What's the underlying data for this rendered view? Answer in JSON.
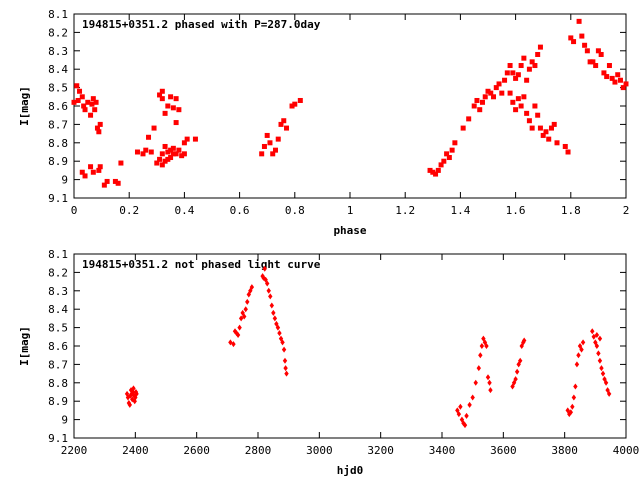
{
  "chart_data": [
    {
      "type": "scatter",
      "title": "194815+0351.2 phased with P=287.0day",
      "xlabel": "phase",
      "ylabel": "I[mag]",
      "xlim": [
        0,
        2
      ],
      "ylim": [
        9.1,
        8.1
      ],
      "y_inverted": true,
      "xticks": [
        0,
        0.2,
        0.4,
        0.6,
        0.8,
        1,
        1.2,
        1.4,
        1.6,
        1.8,
        2
      ],
      "xtick_labels": [
        "0",
        "0.2",
        "0.4",
        "0.6",
        "0.8",
        "1",
        "1.2",
        "1.4",
        "1.6",
        "1.8",
        "2"
      ],
      "yticks": [
        8.1,
        8.2,
        8.3,
        8.4,
        8.5,
        8.6,
        8.7,
        8.8,
        8.9,
        9,
        9.1
      ],
      "ytick_labels": [
        "8.1",
        "8.2",
        "8.3",
        "8.4",
        "8.5",
        "8.6",
        "8.7",
        "8.8",
        "8.9",
        "9",
        "9.1"
      ],
      "grid": false,
      "marker_color": "#ff0000",
      "marker": "square",
      "series": [
        {
          "points": [
            [
              0.0,
              8.58
            ],
            [
              0.01,
              8.49
            ],
            [
              0.015,
              8.57
            ],
            [
              0.02,
              8.52
            ],
            [
              0.03,
              8.55
            ],
            [
              0.035,
              8.6
            ],
            [
              0.04,
              8.62
            ],
            [
              0.05,
              8.58
            ],
            [
              0.06,
              8.65
            ],
            [
              0.065,
              8.59
            ],
            [
              0.07,
              8.56
            ],
            [
              0.075,
              8.62
            ],
            [
              0.08,
              8.58
            ],
            [
              0.085,
              8.72
            ],
            [
              0.09,
              8.74
            ],
            [
              0.095,
              8.7
            ],
            [
              0.03,
              8.96
            ],
            [
              0.04,
              8.98
            ],
            [
              0.06,
              8.93
            ],
            [
              0.07,
              8.96
            ],
            [
              0.09,
              8.95
            ],
            [
              0.095,
              8.93
            ],
            [
              0.11,
              9.03
            ],
            [
              0.12,
              9.01
            ],
            [
              0.15,
              9.01
            ],
            [
              0.16,
              9.02
            ],
            [
              0.17,
              8.91
            ],
            [
              0.23,
              8.85
            ],
            [
              0.25,
              8.86
            ],
            [
              0.26,
              8.84
            ],
            [
              0.27,
              8.77
            ],
            [
              0.28,
              8.85
            ],
            [
              0.29,
              8.72
            ],
            [
              0.3,
              8.91
            ],
            [
              0.31,
              8.89
            ],
            [
              0.32,
              8.92
            ],
            [
              0.32,
              8.86
            ],
            [
              0.33,
              8.9
            ],
            [
              0.33,
              8.82
            ],
            [
              0.34,
              8.89
            ],
            [
              0.34,
              8.85
            ],
            [
              0.35,
              8.88
            ],
            [
              0.35,
              8.84
            ],
            [
              0.36,
              8.86
            ],
            [
              0.36,
              8.83
            ],
            [
              0.37,
              8.86
            ],
            [
              0.38,
              8.84
            ],
            [
              0.39,
              8.87
            ],
            [
              0.4,
              8.86
            ],
            [
              0.4,
              8.8
            ],
            [
              0.41,
              8.78
            ],
            [
              0.44,
              8.78
            ],
            [
              0.31,
              8.54
            ],
            [
              0.32,
              8.52
            ],
            [
              0.32,
              8.56
            ],
            [
              0.33,
              8.64
            ],
            [
              0.34,
              8.6
            ],
            [
              0.35,
              8.55
            ],
            [
              0.36,
              8.61
            ],
            [
              0.37,
              8.69
            ],
            [
              0.38,
              8.62
            ],
            [
              0.37,
              8.56
            ],
            [
              0.68,
              8.86
            ],
            [
              0.69,
              8.82
            ],
            [
              0.7,
              8.76
            ],
            [
              0.71,
              8.8
            ],
            [
              0.72,
              8.86
            ],
            [
              0.73,
              8.84
            ],
            [
              0.74,
              8.78
            ],
            [
              0.75,
              8.7
            ],
            [
              0.76,
              8.68
            ],
            [
              0.77,
              8.72
            ],
            [
              0.79,
              8.6
            ],
            [
              0.8,
              8.59
            ],
            [
              0.82,
              8.57
            ],
            [
              1.29,
              8.95
            ],
            [
              1.3,
              8.96
            ],
            [
              1.31,
              8.97
            ],
            [
              1.32,
              8.95
            ],
            [
              1.33,
              8.92
            ],
            [
              1.34,
              8.9
            ],
            [
              1.35,
              8.86
            ],
            [
              1.36,
              8.88
            ],
            [
              1.37,
              8.84
            ],
            [
              1.38,
              8.8
            ],
            [
              1.41,
              8.72
            ],
            [
              1.43,
              8.67
            ],
            [
              1.45,
              8.6
            ],
            [
              1.46,
              8.57
            ],
            [
              1.47,
              8.62
            ],
            [
              1.48,
              8.58
            ],
            [
              1.49,
              8.55
            ],
            [
              1.5,
              8.52
            ],
            [
              1.51,
              8.53
            ],
            [
              1.52,
              8.55
            ],
            [
              1.53,
              8.5
            ],
            [
              1.54,
              8.48
            ],
            [
              1.55,
              8.53
            ],
            [
              1.56,
              8.46
            ],
            [
              1.57,
              8.42
            ],
            [
              1.58,
              8.38
            ],
            [
              1.59,
              8.42
            ],
            [
              1.6,
              8.45
            ],
            [
              1.61,
              8.43
            ],
            [
              1.62,
              8.38
            ],
            [
              1.63,
              8.34
            ],
            [
              1.64,
              8.46
            ],
            [
              1.65,
              8.4
            ],
            [
              1.66,
              8.36
            ],
            [
              1.67,
              8.38
            ],
            [
              1.68,
              8.32
            ],
            [
              1.69,
              8.28
            ],
            [
              1.58,
              8.53
            ],
            [
              1.59,
              8.58
            ],
            [
              1.6,
              8.62
            ],
            [
              1.61,
              8.56
            ],
            [
              1.62,
              8.6
            ],
            [
              1.63,
              8.55
            ],
            [
              1.64,
              8.64
            ],
            [
              1.65,
              8.68
            ],
            [
              1.66,
              8.72
            ],
            [
              1.67,
              8.6
            ],
            [
              1.68,
              8.65
            ],
            [
              1.69,
              8.72
            ],
            [
              1.7,
              8.76
            ],
            [
              1.71,
              8.74
            ],
            [
              1.72,
              8.78
            ],
            [
              1.73,
              8.72
            ],
            [
              1.74,
              8.7
            ],
            [
              1.75,
              8.8
            ],
            [
              1.78,
              8.82
            ],
            [
              1.79,
              8.85
            ],
            [
              1.8,
              8.23
            ],
            [
              1.81,
              8.25
            ],
            [
              1.83,
              8.14
            ],
            [
              1.84,
              8.22
            ],
            [
              1.85,
              8.27
            ],
            [
              1.86,
              8.3
            ],
            [
              1.87,
              8.36
            ],
            [
              1.88,
              8.36
            ],
            [
              1.89,
              8.38
            ],
            [
              1.9,
              8.3
            ],
            [
              1.91,
              8.32
            ],
            [
              1.92,
              8.42
            ],
            [
              1.93,
              8.44
            ],
            [
              1.94,
              8.38
            ],
            [
              1.95,
              8.45
            ],
            [
              1.96,
              8.47
            ],
            [
              1.97,
              8.43
            ],
            [
              1.98,
              8.46
            ],
            [
              1.99,
              8.5
            ],
            [
              2.0,
              8.48
            ]
          ]
        }
      ]
    },
    {
      "type": "scatter",
      "title": "194815+0351.2 not phased light curve",
      "xlabel": "hjd0",
      "ylabel": "I[mag]",
      "xlim": [
        2200,
        4000
      ],
      "ylim": [
        9.1,
        8.1
      ],
      "y_inverted": true,
      "xticks": [
        2200,
        2400,
        2600,
        2800,
        3000,
        3200,
        3400,
        3600,
        3800,
        4000
      ],
      "xtick_labels": [
        "2200",
        "2400",
        "2600",
        "2800",
        "3000",
        "3200",
        "3400",
        "3600",
        "3800",
        "4000"
      ],
      "yticks": [
        8.1,
        8.2,
        8.3,
        8.4,
        8.5,
        8.6,
        8.7,
        8.8,
        8.9,
        9,
        9.1
      ],
      "ytick_labels": [
        "8.1",
        "8.2",
        "8.3",
        "8.4",
        "8.5",
        "8.6",
        "8.7",
        "8.8",
        "8.9",
        "9",
        "9.1"
      ],
      "grid": false,
      "marker_color": "#ff0000",
      "marker": "diamond",
      "series": [
        {
          "points": [
            [
              2373,
              8.86
            ],
            [
              2376,
              8.88
            ],
            [
              2379,
              8.91
            ],
            [
              2382,
              8.92
            ],
            [
              2384,
              8.87
            ],
            [
              2386,
              8.84
            ],
            [
              2388,
              8.86
            ],
            [
              2390,
              8.89
            ],
            [
              2392,
              8.85
            ],
            [
              2394,
              8.83
            ],
            [
              2396,
              8.87
            ],
            [
              2398,
              8.9
            ],
            [
              2400,
              8.88
            ],
            [
              2402,
              8.85
            ],
            [
              2404,
              8.86
            ],
            [
              2710,
              8.58
            ],
            [
              2720,
              8.59
            ],
            [
              2725,
              8.52
            ],
            [
              2730,
              8.53
            ],
            [
              2735,
              8.54
            ],
            [
              2740,
              8.5
            ],
            [
              2745,
              8.45
            ],
            [
              2750,
              8.42
            ],
            [
              2755,
              8.44
            ],
            [
              2760,
              8.4
            ],
            [
              2765,
              8.36
            ],
            [
              2770,
              8.32
            ],
            [
              2775,
              8.3
            ],
            [
              2780,
              8.28
            ],
            [
              2815,
              8.22
            ],
            [
              2818,
              8.23
            ],
            [
              2822,
              8.18
            ],
            [
              2825,
              8.24
            ],
            [
              2830,
              8.26
            ],
            [
              2835,
              8.3
            ],
            [
              2840,
              8.33
            ],
            [
              2845,
              8.38
            ],
            [
              2850,
              8.42
            ],
            [
              2855,
              8.45
            ],
            [
              2860,
              8.48
            ],
            [
              2865,
              8.5
            ],
            [
              2870,
              8.53
            ],
            [
              2875,
              8.56
            ],
            [
              2880,
              8.58
            ],
            [
              2885,
              8.62
            ],
            [
              2888,
              8.68
            ],
            [
              2890,
              8.72
            ],
            [
              2893,
              8.75
            ],
            [
              3450,
              8.95
            ],
            [
              3455,
              8.97
            ],
            [
              3460,
              8.93
            ],
            [
              3465,
              9.0
            ],
            [
              3470,
              9.02
            ],
            [
              3475,
              9.03
            ],
            [
              3480,
              8.98
            ],
            [
              3490,
              8.92
            ],
            [
              3500,
              8.88
            ],
            [
              3510,
              8.8
            ],
            [
              3520,
              8.72
            ],
            [
              3525,
              8.65
            ],
            [
              3530,
              8.6
            ],
            [
              3535,
              8.56
            ],
            [
              3540,
              8.58
            ],
            [
              3545,
              8.6
            ],
            [
              3550,
              8.77
            ],
            [
              3555,
              8.8
            ],
            [
              3558,
              8.84
            ],
            [
              3630,
              8.82
            ],
            [
              3635,
              8.8
            ],
            [
              3640,
              8.78
            ],
            [
              3645,
              8.74
            ],
            [
              3650,
              8.7
            ],
            [
              3655,
              8.68
            ],
            [
              3660,
              8.6
            ],
            [
              3665,
              8.58
            ],
            [
              3668,
              8.57
            ],
            [
              3810,
              8.95
            ],
            [
              3815,
              8.97
            ],
            [
              3820,
              8.96
            ],
            [
              3825,
              8.93
            ],
            [
              3830,
              8.88
            ],
            [
              3835,
              8.82
            ],
            [
              3840,
              8.7
            ],
            [
              3845,
              8.65
            ],
            [
              3850,
              8.6
            ],
            [
              3855,
              8.62
            ],
            [
              3860,
              8.58
            ],
            [
              3890,
              8.52
            ],
            [
              3895,
              8.55
            ],
            [
              3900,
              8.58
            ],
            [
              3905,
              8.6
            ],
            [
              3910,
              8.64
            ],
            [
              3915,
              8.68
            ],
            [
              3920,
              8.72
            ],
            [
              3925,
              8.75
            ],
            [
              3930,
              8.78
            ],
            [
              3935,
              8.8
            ],
            [
              3940,
              8.84
            ],
            [
              3945,
              8.86
            ],
            [
              3905,
              8.54
            ],
            [
              3915,
              8.56
            ]
          ]
        }
      ]
    }
  ]
}
